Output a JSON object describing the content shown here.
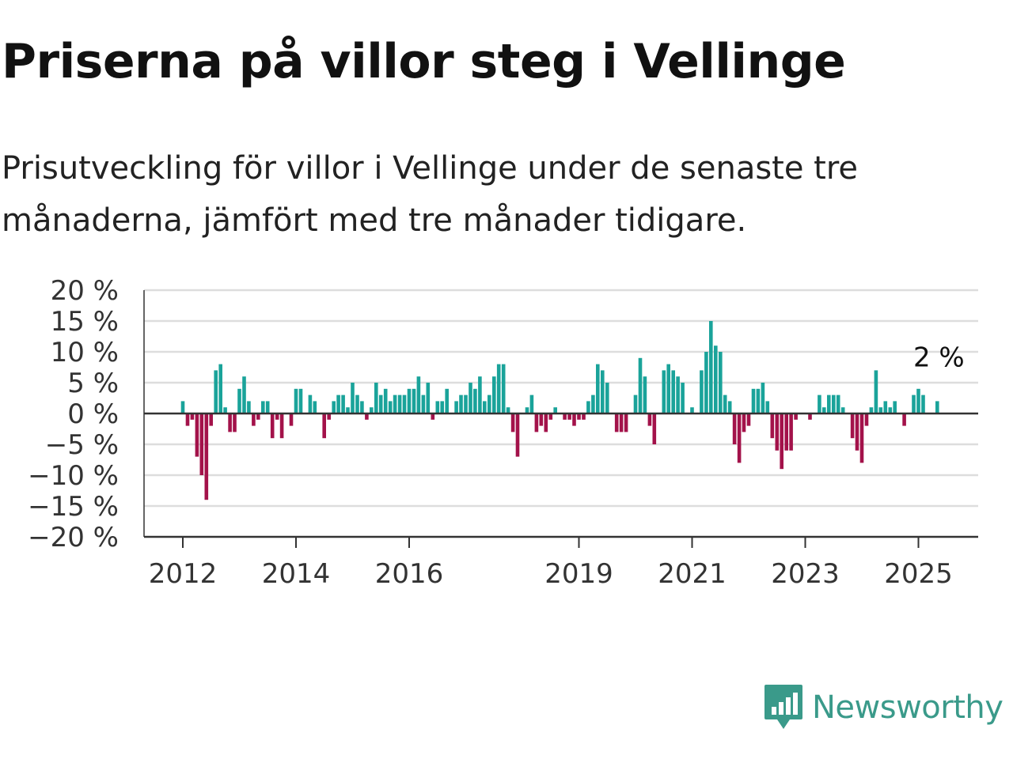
{
  "title": "Priserna på villor steg i Vellinge",
  "subtitle": "Prisutveckling för villor i Vellinge under de senaste tre månaderna, jämfört med tre månader tidigare.",
  "brand": {
    "name": "Newsworthy",
    "color": "#3a9a8a",
    "icon": "newsworthy-logo-icon"
  },
  "colors": {
    "positive": "#1aa39a",
    "negative": "#a3124a",
    "grid": "#dddddd",
    "axis": "#333333"
  },
  "chart_data": {
    "type": "bar",
    "ylim": [
      -20,
      20
    ],
    "y_ticks": [
      20,
      15,
      10,
      5,
      0,
      -5,
      -10,
      -15,
      -20
    ],
    "y_tick_labels": [
      "20 %",
      "15 %",
      "10 %",
      "5 %",
      "0 %",
      "−5 %",
      "−10 %",
      "−15 %",
      "−20 %"
    ],
    "x_ticks": [
      "2012",
      "2014",
      "2016",
      "2019",
      "2021",
      "2023",
      "2025"
    ],
    "annotation": "2 %",
    "grid": true,
    "start_period": "2012-01",
    "values": [
      2,
      -2,
      -1,
      -7,
      -10,
      -14,
      -2,
      7,
      8,
      1,
      -3,
      -3,
      4,
      6,
      2,
      -2,
      -1,
      2,
      2,
      -4,
      -1,
      -4,
      0,
      -2,
      4,
      4,
      0,
      3,
      2,
      0,
      -4,
      -1,
      2,
      3,
      3,
      1,
      5,
      3,
      2,
      -1,
      1,
      5,
      3,
      4,
      2,
      3,
      3,
      3,
      4,
      4,
      6,
      3,
      5,
      -1,
      2,
      2,
      4,
      0,
      2,
      3,
      3,
      5,
      4,
      6,
      2,
      3,
      6,
      8,
      8,
      1,
      -3,
      -7,
      0,
      1,
      3,
      -3,
      -2,
      -3,
      -1,
      1,
      0,
      -1,
      -1,
      -2,
      -1,
      -1,
      2,
      3,
      8,
      7,
      5,
      0,
      -3,
      -3,
      -3,
      0,
      3,
      9,
      6,
      -2,
      -5,
      0,
      7,
      8,
      7,
      6,
      5,
      0,
      1,
      0,
      7,
      10,
      15,
      11,
      10,
      3,
      2,
      -5,
      -8,
      -3,
      -2,
      4,
      4,
      5,
      2,
      -4,
      -6,
      -9,
      -6,
      -6,
      -1,
      0,
      0,
      -1,
      0,
      3,
      1,
      3,
      3,
      3,
      1,
      0,
      -4,
      -6,
      -8,
      -2,
      1,
      7,
      1,
      2,
      1,
      2,
      0,
      -2,
      0,
      3,
      4,
      3,
      0,
      0,
      2
    ]
  }
}
